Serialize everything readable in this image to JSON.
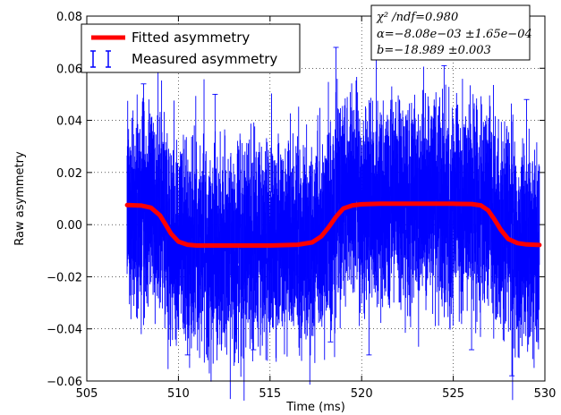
{
  "chart_data": {
    "type": "line",
    "xlabel": "Time (ms)",
    "ylabel": "Raw asymmetry",
    "xlim": [
      505,
      530
    ],
    "ylim": [
      -0.06,
      0.08
    ],
    "x_ticks": [
      505,
      510,
      515,
      520,
      525,
      530
    ],
    "x_tick_labels": [
      "505",
      "510",
      "515",
      "520",
      "525",
      "530"
    ],
    "y_ticks": [
      -0.06,
      -0.04,
      -0.02,
      0.0,
      0.02,
      0.04,
      0.06,
      0.08
    ],
    "y_tick_labels": [
      "−0.06",
      "−0.04",
      "−0.02",
      "0.00",
      "0.02",
      "0.04",
      "0.06",
      "0.08"
    ],
    "grid": true,
    "legend_position": "upper-left",
    "stats_box_position": "top-right",
    "series": [
      {
        "name": "Fitted asymmetry",
        "style": "line",
        "color": "#ff0000",
        "x": [
          507.2,
          508.0,
          508.5,
          509.0,
          509.3,
          509.6,
          510.0,
          510.5,
          511.0,
          513.0,
          515.0,
          516.5,
          517.3,
          517.8,
          518.2,
          518.6,
          519.0,
          519.5,
          520.0,
          521.0,
          523.0,
          525.0,
          526.0,
          526.5,
          526.9,
          527.2,
          527.6,
          528.0,
          528.5,
          529.0,
          529.7
        ],
        "y": [
          0.0075,
          0.0073,
          0.0065,
          0.0035,
          0.0,
          -0.0035,
          -0.0065,
          -0.0077,
          -0.008,
          -0.008,
          -0.008,
          -0.0077,
          -0.0068,
          -0.0045,
          -0.001,
          0.003,
          0.0062,
          0.0074,
          0.0078,
          0.008,
          0.008,
          0.008,
          0.0079,
          0.0074,
          0.0055,
          0.0025,
          -0.002,
          -0.0055,
          -0.0071,
          -0.0076,
          -0.0078
        ]
      },
      {
        "name": "Measured asymmetry",
        "style": "errorbar",
        "color": "#0000ff",
        "x_range": [
          507.2,
          529.7
        ],
        "y_center_follows": "Fitted asymmetry",
        "typical_y_range": [
          -0.04,
          0.045
        ],
        "extremes": [
          {
            "x": 508.1,
            "y_max": 0.054
          },
          {
            "x": 512.0,
            "y_max": 0.05
          },
          {
            "x": 518.6,
            "y_max": 0.068
          },
          {
            "x": 520.8,
            "y_max": 0.07
          },
          {
            "x": 524.5,
            "y_max": 0.061
          },
          {
            "x": 529.0,
            "y_max": 0.048
          },
          {
            "x": 510.5,
            "y_min": -0.05
          },
          {
            "x": 514.1,
            "y_min": -0.048
          },
          {
            "x": 518.3,
            "y_min": -0.045
          },
          {
            "x": 520.4,
            "y_min": -0.05
          },
          {
            "x": 526.0,
            "y_min": -0.048
          },
          {
            "x": 528.2,
            "y_min": -0.058
          }
        ]
      }
    ],
    "stats_box": {
      "line1_lhs": "χ² /ndf",
      "line1_rhs": "=0.980",
      "line2_lhs": "α",
      "line2_rhs": "=−8.08e−03 ±1.65e−04",
      "line3_lhs": "b",
      "line3_rhs": "=−18.989 ±0.003"
    }
  }
}
